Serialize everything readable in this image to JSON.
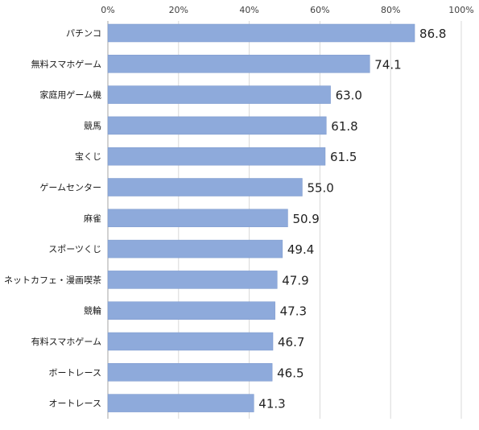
{
  "chart_data": {
    "type": "bar",
    "orientation": "horizontal",
    "categories": [
      "パチンコ",
      "無料スマホゲーム",
      "家庭用ゲーム機",
      "競馬",
      "宝くじ",
      "ゲームセンター",
      "麻雀",
      "スポーツくじ",
      "ネットカフェ・漫画喫茶",
      "競輪",
      "有料スマホゲーム",
      "ボートレース",
      "オートレース"
    ],
    "values": [
      86.8,
      74.1,
      63.0,
      61.8,
      61.5,
      55.0,
      50.9,
      49.4,
      47.9,
      47.3,
      46.7,
      46.5,
      41.3
    ],
    "data_labels": [
      "86.8",
      "74.1",
      "63.0",
      "61.8",
      "61.5",
      "55.0",
      "50.9",
      "49.4",
      "47.9",
      "47.3",
      "46.7",
      "46.5",
      "41.3"
    ],
    "xlim": [
      0,
      100
    ],
    "ticks": [
      0,
      20,
      40,
      60,
      80,
      100
    ],
    "tick_labels": [
      "0%",
      "20%",
      "40%",
      "60%",
      "80%",
      "100%"
    ],
    "axis_position": "top",
    "grid": true,
    "legend": "none",
    "colors": {
      "bar": "#8eaadb",
      "grid": "#d9d9d9",
      "axis": "#a6a6a6"
    }
  }
}
